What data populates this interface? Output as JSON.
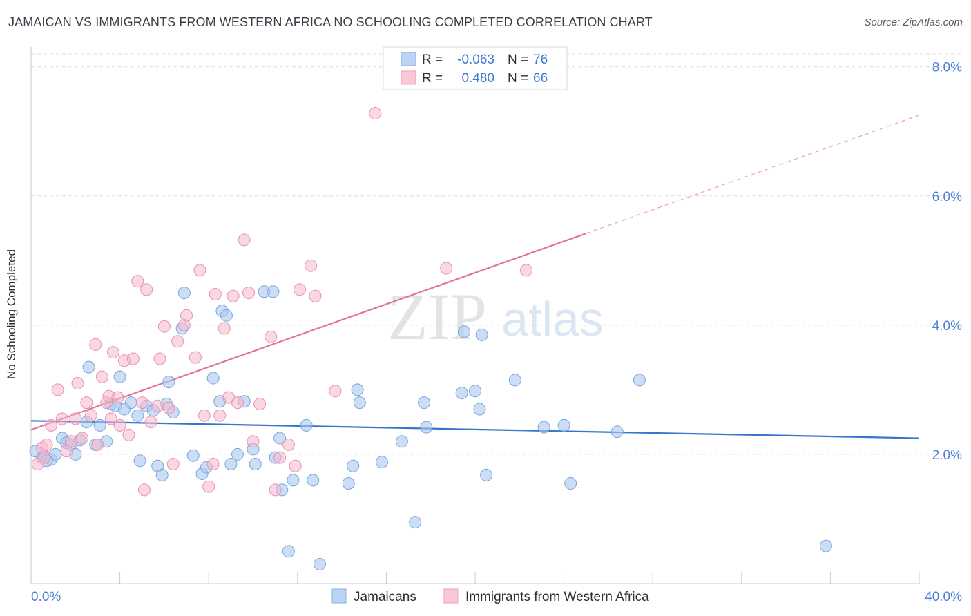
{
  "header": {
    "title": "JAMAICAN VS IMMIGRANTS FROM WESTERN AFRICA NO SCHOOLING COMPLETED CORRELATION CHART",
    "source": "Source: ZipAtlas.com"
  },
  "watermark": {
    "part1": "ZIP",
    "part2": "atlas"
  },
  "legend_box": {
    "rows": [
      {
        "r_label": "R =",
        "r_value": "-0.063",
        "n_label": "N =",
        "n_value": "76"
      },
      {
        "r_label": "R =",
        "r_value": "0.480",
        "n_label": "N =",
        "n_value": "66"
      }
    ]
  },
  "colors": {
    "blue_fill": "#aac8f0",
    "blue_stroke": "#7aa6dc",
    "blue_line": "#3776cc",
    "pink_fill": "#f5b8cc",
    "pink_stroke": "#e990ad",
    "pink_line": "#e2749b",
    "value_text": "#3d78d0",
    "grid": "#dcdde0",
    "axis_tick_text": "#4b7fd2"
  },
  "chart_data": {
    "type": "scatter",
    "title": "JAMAICAN VS IMMIGRANTS FROM WESTERN AFRICA NO SCHOOLING COMPLETED CORRELATION CHART",
    "xlabel": "",
    "ylabel": "No Schooling Completed",
    "xlim": [
      0,
      40
    ],
    "ylim": [
      0,
      8.2
    ],
    "x_tick_labels": [
      "0.0%",
      "40.0%"
    ],
    "y_ticks": [
      2,
      4,
      6,
      8
    ],
    "y_tick_labels": [
      "2.0%",
      "4.0%",
      "6.0%",
      "8.0%"
    ],
    "grid": true,
    "legend_position": "bottom",
    "series": [
      {
        "name": "Jamaicans",
        "color": "#aac8f0",
        "r": -0.063,
        "n": 76,
        "trend": {
          "x": [
            0,
            40
          ],
          "y": [
            2.52,
            2.25
          ]
        },
        "points": [
          [
            0.2,
            2.05
          ],
          [
            0.5,
            1.95
          ],
          [
            0.6,
            1.98
          ],
          [
            0.9,
            1.92
          ],
          [
            1.1,
            2.0
          ],
          [
            1.4,
            2.25
          ],
          [
            1.6,
            2.18
          ],
          [
            1.8,
            2.15
          ],
          [
            2.0,
            2.0
          ],
          [
            2.2,
            2.22
          ],
          [
            2.5,
            2.5
          ],
          [
            2.6,
            3.35
          ],
          [
            2.9,
            2.15
          ],
          [
            3.1,
            2.45
          ],
          [
            3.4,
            2.2
          ],
          [
            3.6,
            2.78
          ],
          [
            3.8,
            2.75
          ],
          [
            4.0,
            3.2
          ],
          [
            4.2,
            2.7
          ],
          [
            4.5,
            2.8
          ],
          [
            4.8,
            2.6
          ],
          [
            4.9,
            1.9
          ],
          [
            5.2,
            2.75
          ],
          [
            5.5,
            2.68
          ],
          [
            5.7,
            1.82
          ],
          [
            5.9,
            1.68
          ],
          [
            6.1,
            2.78
          ],
          [
            6.2,
            3.12
          ],
          [
            6.4,
            2.65
          ],
          [
            6.8,
            3.95
          ],
          [
            6.9,
            4.5
          ],
          [
            7.3,
            1.98
          ],
          [
            7.7,
            1.7
          ],
          [
            7.9,
            1.8
          ],
          [
            8.2,
            3.18
          ],
          [
            8.5,
            2.82
          ],
          [
            8.6,
            4.22
          ],
          [
            8.8,
            4.15
          ],
          [
            9.0,
            1.85
          ],
          [
            9.3,
            2.0
          ],
          [
            9.6,
            2.82
          ],
          [
            10.0,
            2.08
          ],
          [
            10.1,
            1.85
          ],
          [
            10.5,
            4.52
          ],
          [
            10.9,
            4.52
          ],
          [
            11.0,
            1.95
          ],
          [
            11.2,
            2.25
          ],
          [
            11.3,
            1.45
          ],
          [
            11.6,
            0.5
          ],
          [
            11.8,
            1.6
          ],
          [
            12.4,
            2.45
          ],
          [
            12.7,
            1.6
          ],
          [
            13.0,
            0.3
          ],
          [
            14.3,
            1.55
          ],
          [
            14.5,
            1.82
          ],
          [
            14.7,
            3.0
          ],
          [
            14.8,
            2.8
          ],
          [
            15.8,
            1.88
          ],
          [
            16.7,
            2.2
          ],
          [
            17.3,
            0.95
          ],
          [
            17.7,
            2.8
          ],
          [
            17.8,
            2.42
          ],
          [
            19.4,
            2.95
          ],
          [
            19.5,
            3.9
          ],
          [
            20.0,
            2.98
          ],
          [
            20.2,
            2.7
          ],
          [
            20.3,
            3.85
          ],
          [
            20.5,
            1.68
          ],
          [
            21.8,
            3.15
          ],
          [
            23.1,
            2.42
          ],
          [
            24.0,
            2.45
          ],
          [
            24.3,
            1.55
          ],
          [
            26.4,
            2.35
          ],
          [
            27.4,
            3.15
          ],
          [
            35.8,
            0.58
          ],
          [
            0.7,
            1.9
          ]
        ]
      },
      {
        "name": "Immigrants from Western Africa",
        "color": "#f5b8cc",
        "r": 0.48,
        "n": 66,
        "trend": {
          "x": [
            0,
            25.0
          ],
          "y": [
            2.38,
            5.42
          ]
        },
        "trend_dashed": {
          "x": [
            25.0,
            40
          ],
          "y": [
            5.42,
            7.25
          ]
        },
        "points": [
          [
            0.3,
            1.85
          ],
          [
            0.5,
            2.1
          ],
          [
            0.6,
            1.95
          ],
          [
            0.7,
            2.15
          ],
          [
            0.9,
            2.45
          ],
          [
            1.2,
            3.0
          ],
          [
            1.4,
            2.55
          ],
          [
            1.6,
            2.05
          ],
          [
            1.8,
            2.2
          ],
          [
            2.0,
            2.55
          ],
          [
            2.1,
            3.1
          ],
          [
            2.3,
            2.25
          ],
          [
            2.5,
            2.8
          ],
          [
            2.7,
            2.6
          ],
          [
            2.9,
            3.7
          ],
          [
            3.0,
            2.15
          ],
          [
            3.2,
            3.2
          ],
          [
            3.4,
            2.8
          ],
          [
            3.5,
            2.9
          ],
          [
            3.6,
            2.55
          ],
          [
            3.7,
            3.58
          ],
          [
            3.9,
            2.88
          ],
          [
            4.0,
            2.45
          ],
          [
            4.2,
            3.45
          ],
          [
            4.4,
            2.3
          ],
          [
            4.6,
            3.48
          ],
          [
            4.8,
            4.68
          ],
          [
            5.0,
            2.8
          ],
          [
            5.1,
            1.45
          ],
          [
            5.2,
            4.55
          ],
          [
            5.4,
            2.5
          ],
          [
            5.7,
            2.75
          ],
          [
            5.8,
            3.48
          ],
          [
            6.0,
            3.98
          ],
          [
            6.2,
            2.72
          ],
          [
            6.4,
            1.85
          ],
          [
            6.6,
            3.75
          ],
          [
            6.9,
            4.0
          ],
          [
            7.0,
            4.15
          ],
          [
            7.4,
            3.5
          ],
          [
            7.6,
            4.85
          ],
          [
            7.8,
            2.6
          ],
          [
            8.0,
            1.5
          ],
          [
            8.2,
            1.85
          ],
          [
            8.3,
            4.48
          ],
          [
            8.5,
            2.6
          ],
          [
            8.7,
            3.95
          ],
          [
            8.9,
            2.88
          ],
          [
            9.1,
            4.45
          ],
          [
            9.3,
            2.8
          ],
          [
            9.6,
            5.32
          ],
          [
            9.8,
            4.5
          ],
          [
            10.0,
            2.2
          ],
          [
            10.3,
            2.78
          ],
          [
            10.8,
            3.82
          ],
          [
            11.0,
            1.45
          ],
          [
            11.2,
            1.95
          ],
          [
            11.6,
            2.15
          ],
          [
            11.9,
            1.82
          ],
          [
            12.1,
            4.55
          ],
          [
            12.6,
            4.92
          ],
          [
            12.8,
            4.45
          ],
          [
            13.7,
            2.98
          ],
          [
            15.5,
            7.28
          ],
          [
            18.7,
            4.88
          ],
          [
            22.3,
            4.85
          ]
        ]
      }
    ]
  }
}
